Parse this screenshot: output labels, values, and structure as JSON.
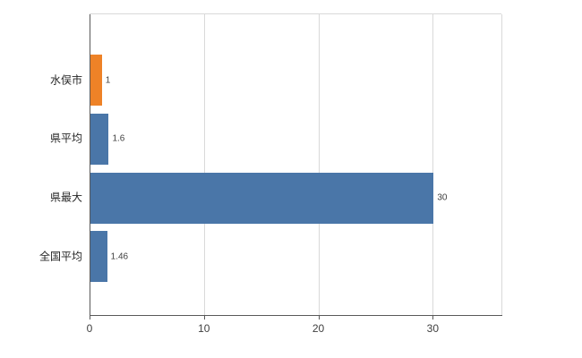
{
  "chart_data": {
    "type": "bar",
    "orientation": "horizontal",
    "title": "",
    "xlabel": "",
    "ylabel": "",
    "categories": [
      "水俣市",
      "県平均",
      "県最大",
      "全国平均"
    ],
    "values": [
      1,
      1.6,
      30,
      1.46
    ],
    "value_labels": [
      "1",
      "1.6",
      "30",
      "1.46"
    ],
    "bar_colors": [
      "#ee8227",
      "#4a76a8",
      "#4a76a8",
      "#4a76a8"
    ],
    "xlim": [
      0,
      36
    ],
    "xticks": [
      0,
      10,
      20,
      30
    ],
    "xtick_labels": [
      "0",
      "10",
      "20",
      "30"
    ],
    "grid": true,
    "legend": "none",
    "colors": {
      "bar_blue": "#4a76a8",
      "bar_orange": "#ee8227",
      "gridline": "#d9d9d9",
      "axis": "#595959",
      "background": "#ffffff",
      "text": "#262626"
    }
  }
}
